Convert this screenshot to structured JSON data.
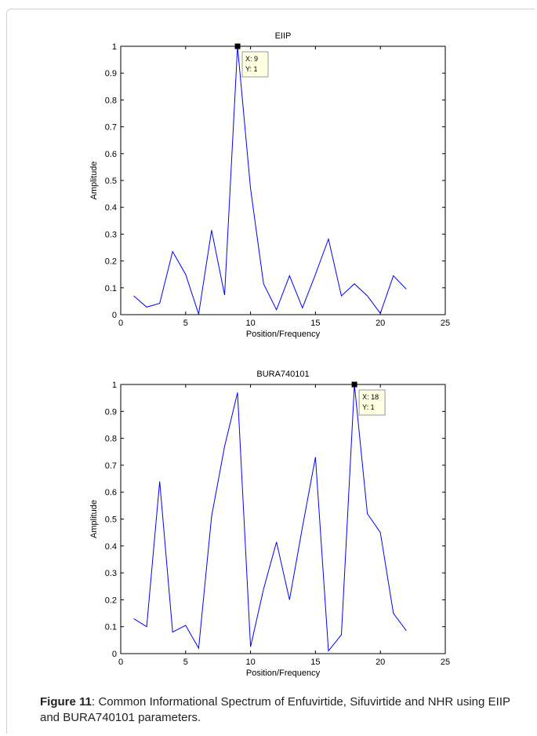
{
  "chart_data": [
    {
      "type": "line",
      "title": "EIIP",
      "xlabel": "Position/Frequency",
      "ylabel": "Amplitude",
      "xlim": [
        0,
        25
      ],
      "ylim": [
        0,
        1
      ],
      "xticks": [
        "0",
        "5",
        "10",
        "15",
        "20",
        "25"
      ],
      "yticks": [
        "0",
        "0.1",
        "0.2",
        "0.3",
        "0.4",
        "0.5",
        "0.6",
        "0.7",
        "0.8",
        "0.9",
        "1"
      ],
      "grid": false,
      "color": "#0000ff",
      "x": [
        1,
        2,
        3,
        4,
        5,
        6,
        7,
        8,
        9,
        10,
        11,
        12,
        13,
        14,
        15,
        16,
        17,
        18,
        19,
        20,
        21,
        22
      ],
      "y": [
        0.07,
        0.028,
        0.042,
        0.235,
        0.15,
        0.002,
        0.315,
        0.073,
        1.0,
        0.47,
        0.115,
        0.018,
        0.145,
        0.025,
        0.15,
        0.282,
        0.07,
        0.115,
        0.07,
        0.005,
        0.145,
        0.095
      ],
      "datatip": {
        "x": 9,
        "y": 1,
        "line1": "X: 9",
        "line2": "Y: 1"
      }
    },
    {
      "type": "line",
      "title": "BURA740101",
      "xlabel": "Position/Frequency",
      "ylabel": "Amplitude",
      "xlim": [
        0,
        25
      ],
      "ylim": [
        0,
        1
      ],
      "xticks": [
        "0",
        "5",
        "10",
        "15",
        "20",
        "25"
      ],
      "yticks": [
        "0",
        "0.1",
        "0.2",
        "0.3",
        "0.4",
        "0.5",
        "0.6",
        "0.7",
        "0.8",
        "0.9",
        "1"
      ],
      "grid": false,
      "color": "#0000ff",
      "x": [
        1,
        2,
        3,
        4,
        5,
        6,
        7,
        8,
        9,
        10,
        11,
        12,
        13,
        14,
        15,
        16,
        17,
        18,
        19,
        20,
        21,
        22
      ],
      "y": [
        0.13,
        0.1,
        0.64,
        0.08,
        0.105,
        0.02,
        0.51,
        0.77,
        0.97,
        0.025,
        0.24,
        0.415,
        0.2,
        0.47,
        0.73,
        0.01,
        0.07,
        1.0,
        0.52,
        0.45,
        0.15,
        0.085
      ],
      "datatip": {
        "x": 18,
        "y": 1,
        "line1": "X: 18",
        "line2": "Y: 1"
      }
    }
  ],
  "caption": {
    "label": "Figure 11",
    "text": ": Common Informational Spectrum of Enfuvirtide, Sifuvirtide and NHR using EIIP and BURA740101 parameters."
  }
}
